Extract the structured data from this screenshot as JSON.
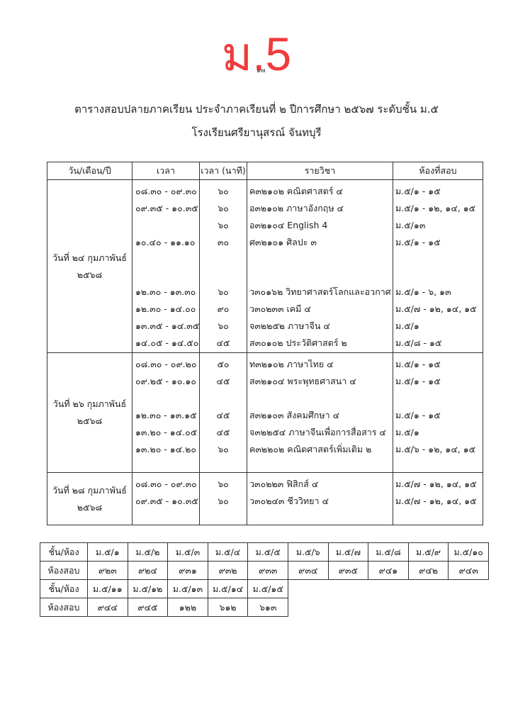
{
  "header": {
    "big_title": "ม.5",
    "page_number": "๑๗",
    "title": "ตารางสอบปลายภาคเรียน  ประจำภาคเรียนที่  ๒  ปีการศึกษา  ๒๕๖๗  ระดับชั้น  ม.๕",
    "school": "โรงเรียนศรียานุสรณ์ จันทบุรี",
    "accent": "#ef3b3b"
  },
  "schedule": {
    "columns": [
      "วัน/เดือน/ปี",
      "เวลา",
      "เวลา  (นาที)",
      "รายวิชา",
      "ห้องที่สอบ"
    ],
    "days": [
      {
        "date_line1": "วันที่  ๒๔  กุมภาพันธ์",
        "date_line2": "๒๕๖๘",
        "entries": [
          {
            "time": "๐๘.๓๐ - ๐๙.๓๐",
            "minutes": "๖๐",
            "subject": "ค๓๒๑๐๒  คณิตศาสตร์  ๔",
            "rooms": "ม.๕/๑ - ๑๕"
          },
          {
            "time": "๐๙.๓๕ - ๑๐.๓๕",
            "minutes": "๖๐",
            "subject": "อ๓๒๑๐๒  ภาษาอังกฤษ  ๔",
            "rooms": "ม.๕/๑ - ๑๒,  ๑๔,  ๑๕"
          },
          {
            "time": "",
            "minutes": "๖๐",
            "subject": "อ๓๒๑๐๔  English  4",
            "rooms": "ม.๕/๑๓"
          },
          {
            "time": "๑๐.๔๐ - ๑๑.๑๐",
            "minutes": "๓๐",
            "subject": "ศ๓๒๑๐๑  ศิลปะ  ๓",
            "rooms": "ม.๕/๑ - ๑๕"
          },
          {
            "time": "๑๒.๓๐ - ๑๓.๓๐",
            "minutes": "๖๐",
            "subject": "ว๓๐๑๖๒  วิทยาศาสตร์โลกและอวกาศ",
            "rooms": "ม.๕/๑ - ๖,  ๑๓"
          },
          {
            "time": "๑๒.๓๐ - ๑๔.๐๐",
            "minutes": "๙๐",
            "subject": "ว๓๐๒๓๓  เคมี  ๔",
            "rooms": "ม.๕/๗ - ๑๒,  ๑๔,  ๑๕"
          },
          {
            "time": "๑๓.๓๕ - ๑๔.๓๕",
            "minutes": "๖๐",
            "subject": "จ๓๒๒๕๒  ภาษาจีน  ๔",
            "rooms": "ม.๕/๑"
          },
          {
            "time": "๑๔.๐๕ - ๑๔.๕๐",
            "minutes": "๔๕",
            "subject": "ส๓๐๑๐๒  ประวัติศาสตร์  ๒",
            "rooms": "ม.๕/๘ - ๑๕"
          }
        ]
      },
      {
        "date_line1": "วันที่  ๒๖  กุมภาพันธ์",
        "date_line2": "๒๕๖๘",
        "entries": [
          {
            "time": "๐๘.๓๐ - ๐๙.๒๐",
            "minutes": "๕๐",
            "subject": "ท๓๒๑๐๒  ภาษาไทย  ๔",
            "rooms": "ม.๕/๑ - ๑๕"
          },
          {
            "time": "๐๙.๒๕ - ๑๐.๑๐",
            "minutes": "๔๕",
            "subject": "ส๓๒๑๐๔  พระพุทธศาสนา  ๔",
            "rooms": "ม.๕/๑ - ๑๕"
          },
          {
            "time": "๑๒.๓๐ - ๑๓.๑๕",
            "minutes": "๔๕",
            "subject": "ส๓๒๑๐๓  สังคมศึกษา  ๔",
            "rooms": "ม.๕/๑ - ๑๕"
          },
          {
            "time": "๑๓.๒๐ - ๑๔.๐๕",
            "minutes": "๔๕",
            "subject": "จ๓๒๒๕๔  ภาษาจีนเพื่อการสื่อสาร  ๔",
            "rooms": "ม.๕/๑"
          },
          {
            "time": "๑๓.๒๐ - ๑๔.๒๐",
            "minutes": "๖๐",
            "subject": "ค๓๒๒๐๒  คณิตศาสตร์เพิ่มเติม  ๒",
            "rooms": "ม.๕/๖ - ๑๒,  ๑๔,  ๑๕"
          }
        ]
      },
      {
        "date_line1": "วันที่  ๒๘  กุมภาพันธ์",
        "date_line2": "๒๕๖๘",
        "entries": [
          {
            "time": "๐๘.๓๐ - ๐๙.๓๐",
            "minutes": "๖๐",
            "subject": "ว๓๐๒๒๓  ฟิสิกส์  ๔",
            "rooms": "ม.๕/๗ - ๑๒,  ๑๔,  ๑๕"
          },
          {
            "time": "๐๙.๓๕ - ๑๐.๓๕",
            "minutes": "๖๐",
            "subject": "ว๓๐๒๔๓  ชีววิทยา  ๔",
            "rooms": "ม.๕/๗ - ๑๒,  ๑๔,  ๑๕"
          }
        ]
      }
    ]
  },
  "room_map": {
    "class_label": "ชั้น/ห้อง",
    "room_label": "ห้องสอบ",
    "groups": [
      {
        "classes": [
          "ม.๕/๑",
          "ม.๕/๒",
          "ม.๕/๓",
          "ม.๕/๔",
          "ม.๕/๕",
          "ม.๕/๖",
          "ม.๕/๗",
          "ม.๕/๘",
          "ม.๕/๙",
          "ม.๕/๑๐"
        ],
        "rooms": [
          "๙๒๓",
          "๙๒๔",
          "๙๓๑",
          "๙๓๒",
          "๙๓๓",
          "๙๓๔",
          "๙๓๕",
          "๙๔๑",
          "๙๔๒",
          "๙๔๓"
        ]
      },
      {
        "classes": [
          "ม.๕/๑๑",
          "ม.๕/๑๒",
          "ม.๕/๑๓",
          "ม.๕/๑๔",
          "ม.๕/๑๕"
        ],
        "rooms": [
          "๙๔๔",
          "๙๔๕",
          "๑๒๒",
          "๖๑๒",
          "๖๑๓"
        ]
      }
    ]
  }
}
